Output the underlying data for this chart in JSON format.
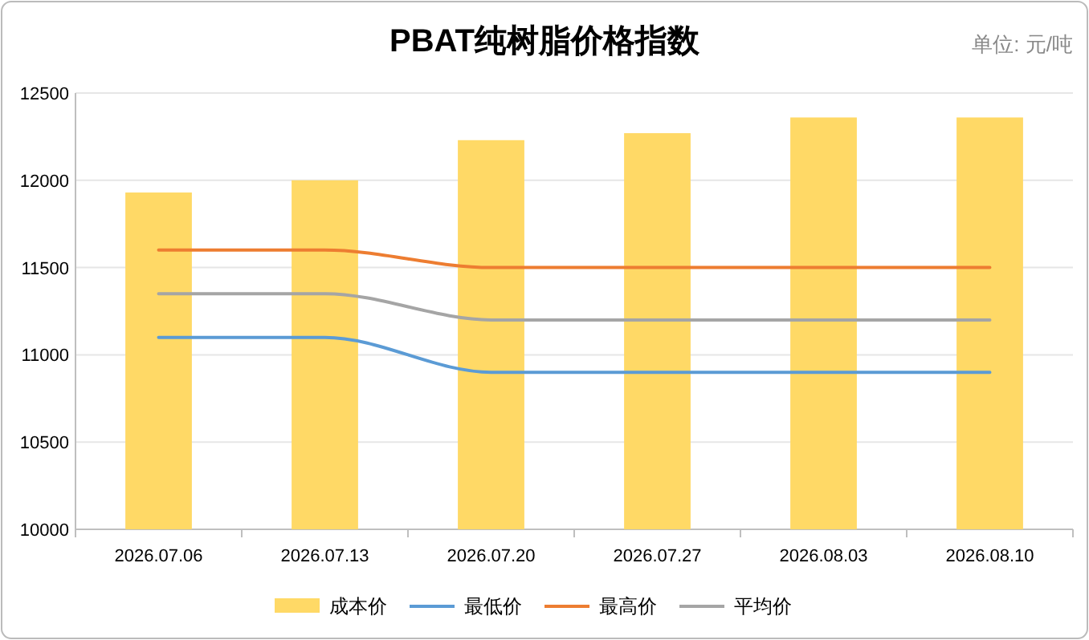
{
  "chart_data": {
    "type": "bar",
    "title": "PBAT纯树脂价格指数",
    "annotations": [
      "单位: 元/吨"
    ],
    "categories": [
      "2026.07.06",
      "2026.07.13",
      "2026.07.20",
      "2026.07.27",
      "2026.08.03",
      "2026.08.10"
    ],
    "series": [
      {
        "name": "成本价",
        "color": "#ffd966",
        "values": [
          11930,
          12000,
          12230,
          12270,
          12360,
          12360
        ]
      },
      {
        "name": "最低价",
        "type": "line",
        "color": "#5b9bd5",
        "values": [
          11100,
          11100,
          10900,
          10900,
          10900,
          10900
        ]
      },
      {
        "name": "最高价",
        "type": "line",
        "color": "#ed7d31",
        "values": [
          11600,
          11600,
          11500,
          11500,
          11500,
          11500
        ]
      },
      {
        "name": "平均价",
        "type": "line",
        "color": "#a5a5a5",
        "values": [
          11350,
          11350,
          11200,
          11200,
          11200,
          11200
        ]
      }
    ],
    "ylim": [
      10000,
      12500
    ],
    "yticks": [
      10000,
      10500,
      11000,
      11500,
      12000,
      12500
    ],
    "grid": "y",
    "legend": "bottom"
  }
}
